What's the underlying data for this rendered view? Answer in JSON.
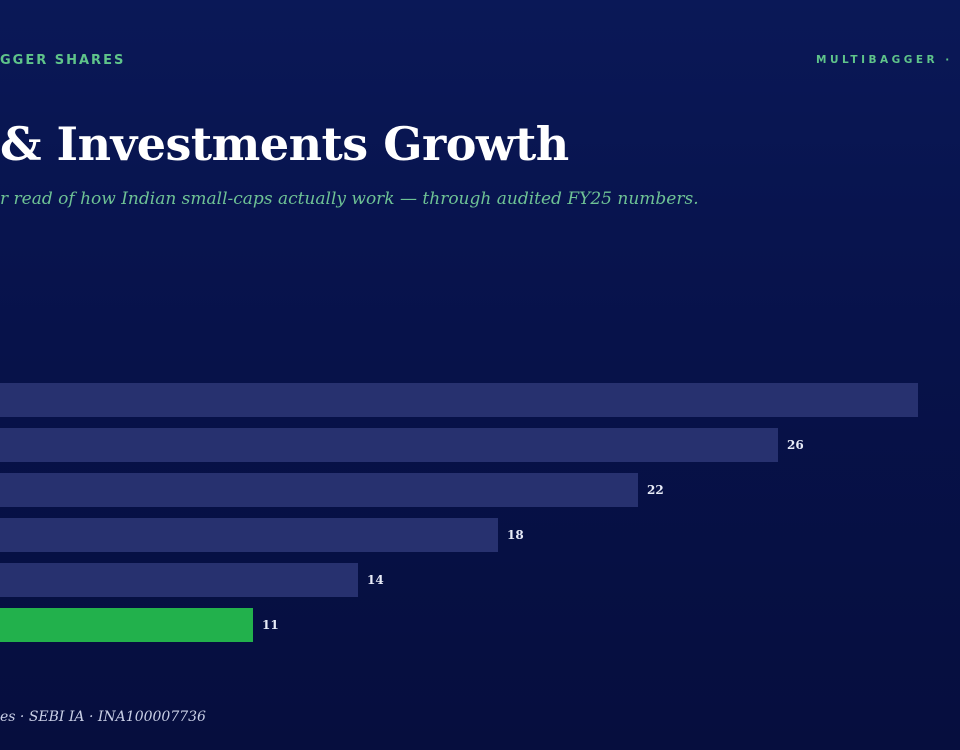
{
  "header": {
    "kicker_left": "GGER SHARES",
    "kicker_right": "MULTIBAGGER · D",
    "title": "& Investments Growth",
    "subtitle": "r read of how Indian small-caps actually work — through audited FY25 numbers."
  },
  "footer": {
    "text": "es · SEBI IA · INA100007736"
  },
  "colors": {
    "bar": "#27316f",
    "highlight_bar": "#22b14c",
    "label": "#e8ecf8"
  },
  "chart_data": {
    "type": "bar",
    "orientation": "horizontal",
    "values": [
      30,
      26,
      22,
      18,
      14,
      11
    ],
    "labels": [
      "",
      "26",
      "22",
      "18",
      "14",
      "11"
    ],
    "highlight_index": 5,
    "title": "& Investments Growth"
  }
}
